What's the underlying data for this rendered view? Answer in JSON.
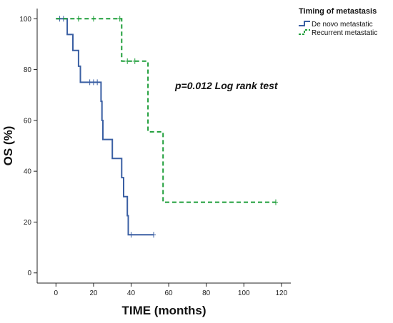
{
  "chart_data": {
    "type": "line",
    "subtype": "kaplan-meier-step",
    "xlabel": "TIME (months)",
    "ylabel": "OS (%)",
    "xlim": [
      -10,
      125
    ],
    "ylim": [
      -4,
      104
    ],
    "xticks": [
      0,
      20,
      40,
      60,
      80,
      100,
      120
    ],
    "yticks": [
      0,
      20,
      40,
      60,
      80,
      100
    ],
    "grid": false,
    "legend": {
      "title": "Timing of metastasis",
      "position": "top-right"
    },
    "annotation": "p=0.012 Log rank test",
    "series": [
      {
        "name": "De novo metastatic",
        "color": "#3a5fa3",
        "dash": "solid",
        "steps": [
          [
            0,
            100
          ],
          [
            6,
            100
          ],
          [
            6,
            93.8
          ],
          [
            9,
            93.8
          ],
          [
            9,
            87.5
          ],
          [
            12,
            87.5
          ],
          [
            12,
            81.3
          ],
          [
            13,
            81.3
          ],
          [
            13,
            75
          ],
          [
            24,
            75
          ],
          [
            24,
            67.5
          ],
          [
            24.5,
            67.5
          ],
          [
            24.5,
            60
          ],
          [
            25,
            60
          ],
          [
            25,
            52.5
          ],
          [
            30,
            52.5
          ],
          [
            30,
            45
          ],
          [
            35,
            45
          ],
          [
            35,
            37.5
          ],
          [
            36,
            37.5
          ],
          [
            36,
            30
          ],
          [
            38,
            30
          ],
          [
            38,
            22.5
          ],
          [
            38.5,
            22.5
          ],
          [
            38.5,
            15
          ],
          [
            52,
            15
          ]
        ],
        "censored": [
          [
            2,
            100
          ],
          [
            4,
            100
          ],
          [
            18,
            75
          ],
          [
            20,
            75
          ],
          [
            22,
            75
          ],
          [
            40,
            15
          ],
          [
            52,
            15
          ]
        ]
      },
      {
        "name": "Recurrent metastatic",
        "color": "#1f9e3a",
        "dash": "dashed",
        "steps": [
          [
            0,
            100
          ],
          [
            35,
            100
          ],
          [
            35,
            83.3
          ],
          [
            49,
            83.3
          ],
          [
            49,
            55.5
          ],
          [
            57,
            55.5
          ],
          [
            57,
            27.8
          ],
          [
            117,
            27.8
          ]
        ],
        "censored": [
          [
            12,
            100
          ],
          [
            20,
            100
          ],
          [
            34,
            100
          ],
          [
            38,
            83.3
          ],
          [
            42,
            83.3
          ],
          [
            117,
            27.8
          ]
        ]
      }
    ]
  }
}
